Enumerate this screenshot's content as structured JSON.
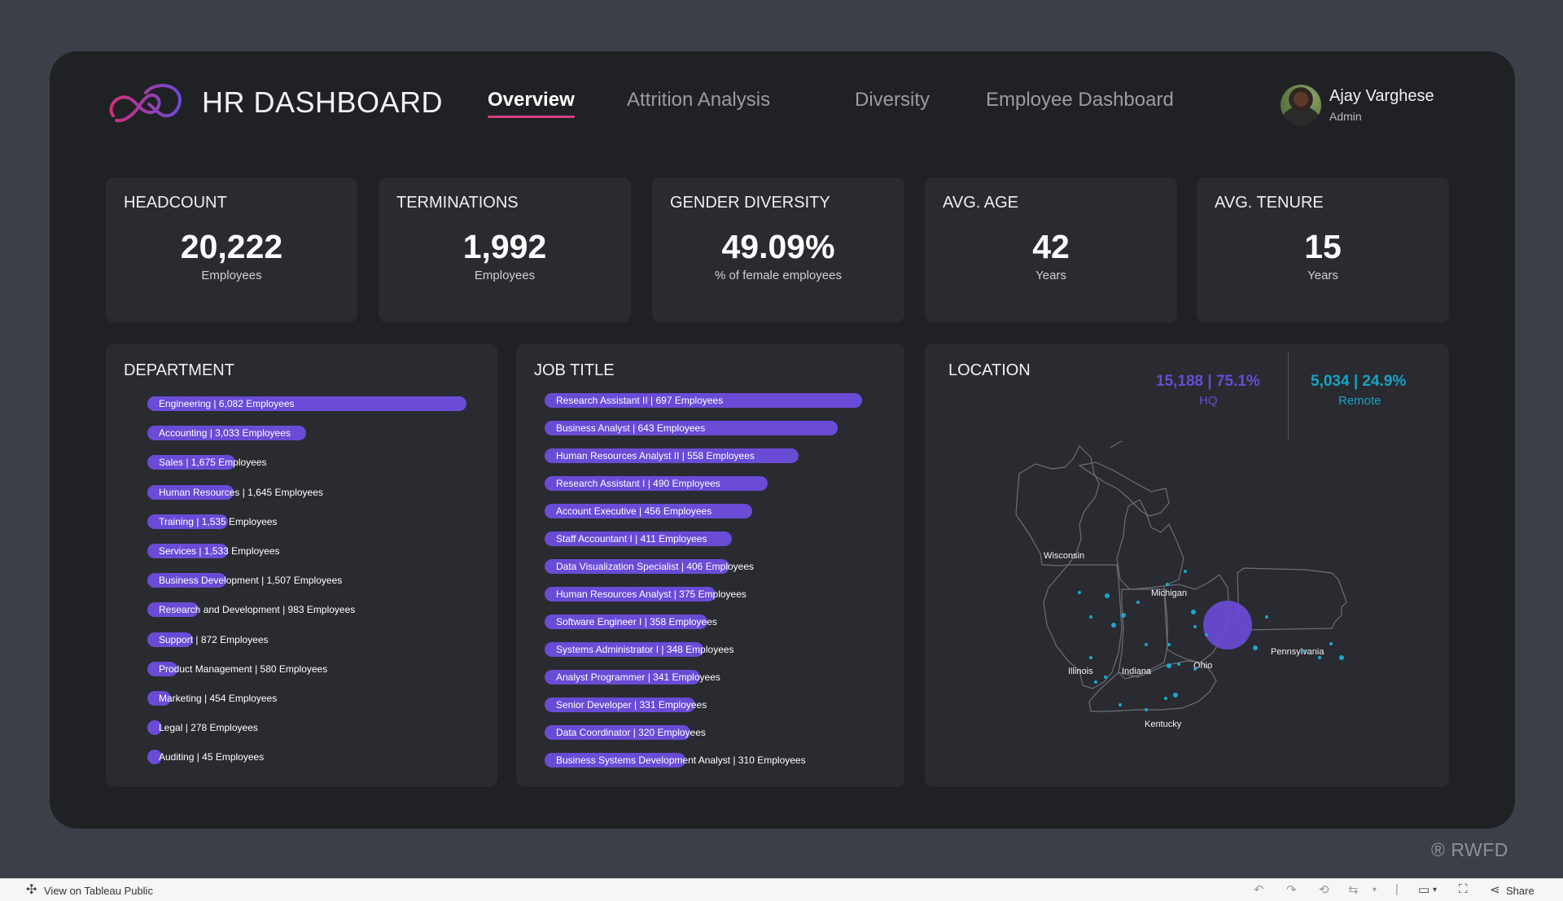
{
  "header": {
    "title": "HR DASHBOARD",
    "tabs": [
      {
        "label": "Overview",
        "active": true
      },
      {
        "label": "Attrition Analysis",
        "active": false
      },
      {
        "label": "Diversity",
        "active": false
      },
      {
        "label": "Employee Dashboard",
        "active": false
      }
    ],
    "user": {
      "name": "Ajay Varghese",
      "role": "Admin"
    }
  },
  "kpis": [
    {
      "label": "HEADCOUNT",
      "value": "20,222",
      "sub": "Employees"
    },
    {
      "label": "TERMINATIONS",
      "value": "1,992",
      "sub": "Employees"
    },
    {
      "label": "GENDER DIVERSITY",
      "value": "49.09%",
      "sub": "% of female employees"
    },
    {
      "label": "AVG. AGE",
      "value": "42",
      "sub": "Years"
    },
    {
      "label": "AVG. TENURE",
      "value": "15",
      "sub": "Years"
    }
  ],
  "department": {
    "title": "DEPARTMENT",
    "rows": [
      {
        "label": "Engineering | 6,082 Employees",
        "value": 6082
      },
      {
        "label": "Accounting | 3,033 Employees",
        "value": 3033
      },
      {
        "label": "Sales | 1,675 Employees",
        "value": 1675
      },
      {
        "label": "Human Resources | 1,645 Employees",
        "value": 1645
      },
      {
        "label": "Training | 1,535 Employees",
        "value": 1535
      },
      {
        "label": "Services | 1,533 Employees",
        "value": 1533
      },
      {
        "label": "Business Development | 1,507 Employees",
        "value": 1507
      },
      {
        "label": "Research and Development | 983 Employees",
        "value": 983
      },
      {
        "label": "Support | 872 Employees",
        "value": 872
      },
      {
        "label": "Product Management | 580 Employees",
        "value": 580
      },
      {
        "label": "Marketing | 454 Employees",
        "value": 454
      },
      {
        "label": "Legal | 278 Employees",
        "value": 278
      },
      {
        "label": "Auditing | 45 Employees",
        "value": 45
      }
    ]
  },
  "job_title": {
    "title": "JOB TITLE",
    "rows": [
      {
        "label": "Research Assistant II | 697 Employees",
        "value": 697
      },
      {
        "label": "Business Analyst | 643 Employees",
        "value": 643
      },
      {
        "label": "Human Resources Analyst II | 558 Employees",
        "value": 558
      },
      {
        "label": "Research Assistant I | 490 Employees",
        "value": 490
      },
      {
        "label": "Account Executive | 456 Employees",
        "value": 456
      },
      {
        "label": "Staff Accountant I | 411 Employees",
        "value": 411
      },
      {
        "label": "Data Visualization Specialist | 406 Employees",
        "value": 406
      },
      {
        "label": "Human Resources Analyst | 375 Employees",
        "value": 375
      },
      {
        "label": "Software Engineer I | 358 Employees",
        "value": 358
      },
      {
        "label": "Systems Administrator I | 348 Employees",
        "value": 348
      },
      {
        "label": "Analyst Programmer | 341 Employees",
        "value": 341
      },
      {
        "label": "Senior Developer | 331 Employees",
        "value": 331
      },
      {
        "label": "Data Coordinator | 320 Employees",
        "value": 320
      },
      {
        "label": "Business Systems Development Analyst | 310 Employees",
        "value": 310
      }
    ]
  },
  "location": {
    "title": "LOCATION",
    "hq": {
      "value": "15,188 | 75.1%",
      "label": "HQ"
    },
    "remote": {
      "value": "5,034 | 24.9%",
      "label": "Remote"
    },
    "states": [
      "Wisconsin",
      "Michigan",
      "Illinois",
      "Indiana",
      "Ohio",
      "Pennsylvania",
      "Kentucky"
    ]
  },
  "colors": {
    "bar": "#6a4bd6",
    "hq": "#6a4bd6",
    "remote": "#17a2c6",
    "accent": "#d83f86"
  },
  "watermark": "® RWFD",
  "toolbar": {
    "view_label": "View on Tableau Public",
    "share_label": "Share",
    "icons": [
      "undo-icon",
      "redo-icon",
      "revert-icon",
      "refresh-icon",
      "pause-icon",
      "comment-icon",
      "fullscreen-icon",
      "share-icon"
    ]
  }
}
